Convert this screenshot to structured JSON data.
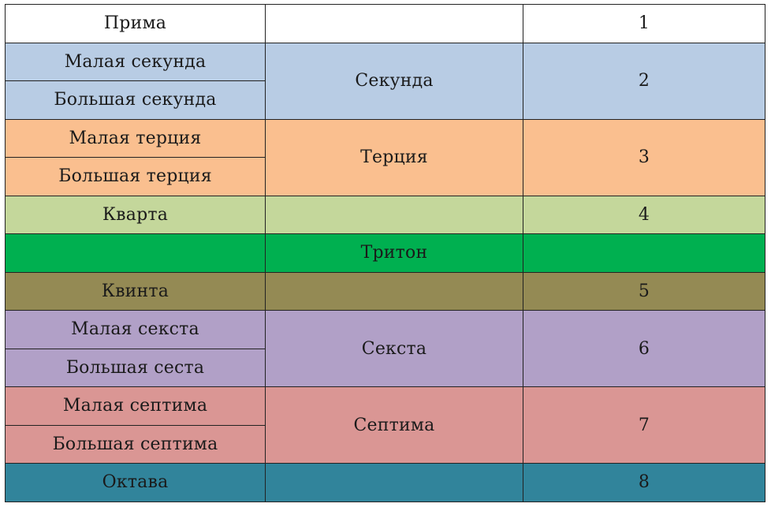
{
  "colors": {
    "border": "#222222",
    "white": "#ffffff",
    "blue": "#b8cce4",
    "orange": "#fabf8f",
    "light-green": "#c4d79b",
    "green": "#00b050",
    "olive": "#948a54",
    "purple": "#b1a0c7",
    "pink": "#da9694",
    "teal": "#31849b"
  },
  "table": {
    "rows": [
      {
        "left": "Прима",
        "color": "white",
        "span": 1,
        "group": "",
        "number": "1"
      },
      {
        "left": "Малая секунда",
        "color": "blue",
        "span": 2,
        "group": "Секунда",
        "number": "2"
      },
      {
        "left": "Большая секунда",
        "color": "blue",
        "span": 0
      },
      {
        "left": "Малая терция",
        "color": "orange",
        "span": 2,
        "group": "Терция",
        "number": "3"
      },
      {
        "left": "Большая терция",
        "color": "orange",
        "span": 0
      },
      {
        "left": "Кварта",
        "color": "light-green",
        "span": 1,
        "group": "",
        "number": "4"
      },
      {
        "left": "",
        "color": "green",
        "span": 1,
        "group": "Тритон",
        "number": ""
      },
      {
        "left": "Квинта",
        "color": "olive",
        "span": 1,
        "group": "",
        "number": "5"
      },
      {
        "left": "Малая секста",
        "color": "purple",
        "span": 2,
        "group": "Секста",
        "number": "6"
      },
      {
        "left": "Большая сеста",
        "color": "purple",
        "span": 0
      },
      {
        "left": "Малая септима",
        "color": "pink",
        "span": 2,
        "group": "Септима",
        "number": "7"
      },
      {
        "left": "Большая септима",
        "color": "pink",
        "span": 0
      },
      {
        "left": "Октава",
        "color": "teal",
        "span": 1,
        "group": "",
        "number": "8"
      }
    ]
  }
}
